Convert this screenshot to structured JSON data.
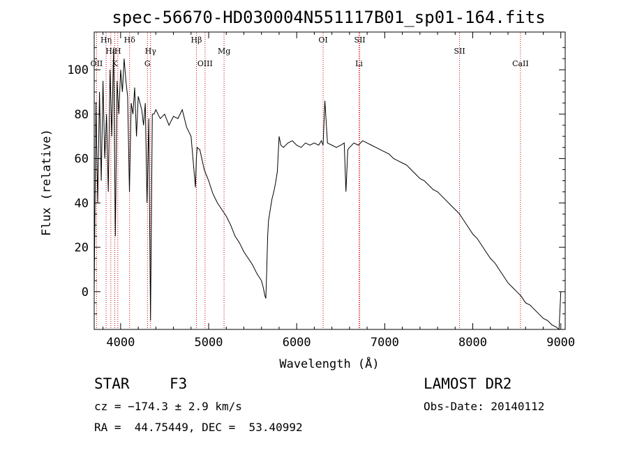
{
  "chart_data": {
    "type": "line",
    "title": "spec-56670-HD030004N551117B01_sp01-164.fits",
    "xlabel": "Wavelength (Å)",
    "ylabel": "Flux (relative)",
    "xlim": [
      3700,
      9050
    ],
    "ylim": [
      -17,
      117
    ],
    "xticks": [
      4000,
      5000,
      6000,
      7000,
      8000,
      9000
    ],
    "yticks": [
      0,
      20,
      40,
      60,
      80,
      100
    ],
    "grid": false,
    "series": [
      {
        "x": [
          3700,
          3720,
          3740,
          3760,
          3780,
          3800,
          3820,
          3840,
          3860,
          3880,
          3900,
          3920,
          3940,
          3960,
          3980,
          4000,
          4020,
          4040,
          4060,
          4080,
          4100,
          4120,
          4140,
          4160,
          4180,
          4200,
          4220,
          4240,
          4260,
          4280,
          4300,
          4320,
          4340,
          4360,
          4380,
          4400,
          4450,
          4500,
          4550,
          4600,
          4650,
          4700,
          4750,
          4800,
          4850,
          4860,
          4870,
          4900,
          4950,
          5000,
          5050,
          5100,
          5150,
          5200,
          5250,
          5300,
          5350,
          5400,
          5450,
          5500,
          5550,
          5600,
          5620,
          5640,
          5650,
          5660,
          5670,
          5680,
          5700,
          5720,
          5740,
          5760,
          5780,
          5800,
          5820,
          5850,
          5900,
          5950,
          6000,
          6050,
          6100,
          6150,
          6200,
          6250,
          6280,
          6300,
          6320,
          6350,
          6400,
          6450,
          6500,
          6540,
          6560,
          6580,
          6600,
          6650,
          6700,
          6750,
          6800,
          6850,
          6900,
          6950,
          7000,
          7050,
          7100,
          7150,
          7200,
          7250,
          7300,
          7350,
          7400,
          7450,
          7500,
          7550,
          7600,
          7650,
          7700,
          7750,
          7800,
          7850,
          7900,
          7950,
          8000,
          8050,
          8100,
          8150,
          8200,
          8250,
          8300,
          8350,
          8400,
          8450,
          8500,
          8550,
          8600,
          8650,
          8700,
          8750,
          8800,
          8850,
          8900,
          8950,
          8980,
          9000
        ],
        "y": [
          0,
          85,
          40,
          90,
          50,
          95,
          60,
          80,
          45,
          100,
          70,
          110,
          25,
          95,
          80,
          100,
          90,
          105,
          95,
          88,
          45,
          85,
          80,
          92,
          70,
          88,
          85,
          82,
          75,
          85,
          40,
          78,
          -13,
          80,
          80,
          82,
          78,
          80,
          75,
          79,
          78,
          82,
          74,
          70,
          47,
          60,
          65,
          64,
          55,
          50,
          44,
          40,
          37,
          34,
          30,
          25,
          22,
          18,
          15,
          12,
          8,
          5,
          2,
          -2,
          -3,
          10,
          25,
          32,
          37,
          42,
          45,
          49,
          54,
          70,
          66,
          65,
          67,
          68,
          66,
          65,
          67,
          66,
          67,
          66,
          68,
          66,
          86,
          67,
          66,
          65,
          66,
          67,
          45,
          64,
          65,
          67,
          66,
          68,
          67,
          66,
          65,
          64,
          63,
          62,
          60,
          59,
          58,
          57,
          55,
          53,
          51,
          50,
          48,
          46,
          45,
          43,
          41,
          39,
          37,
          35,
          32,
          29,
          26,
          24,
          21,
          18,
          15,
          13,
          10,
          7,
          4,
          2,
          0,
          -2,
          -5,
          -6,
          -8,
          -10,
          -12,
          -13,
          -15,
          -16,
          -17,
          0
        ]
      }
    ],
    "line_markers": [
      {
        "label": "Hη",
        "x": 3835,
        "row": 1
      },
      {
        "label": "Hε",
        "x": 3889,
        "row": 2
      },
      {
        "label": "OII",
        "x": 3727,
        "row": 3
      },
      {
        "label": "H",
        "x": 3968,
        "row": 2
      },
      {
        "label": "K",
        "x": 3934,
        "row": 3
      },
      {
        "label": "Hδ",
        "x": 4102,
        "row": 1
      },
      {
        "label": "Hγ",
        "x": 4340,
        "row": 2
      },
      {
        "label": "G",
        "x": 4305,
        "row": 3
      },
      {
        "label": "Hβ",
        "x": 4861,
        "row": 1
      },
      {
        "label": "OIII",
        "x": 4959,
        "row": 3
      },
      {
        "label": "Mg",
        "x": 5175,
        "row": 2
      },
      {
        "label": "OI",
        "x": 6300,
        "row": 1
      },
      {
        "label": "SII",
        "x": 6717,
        "row": 1
      },
      {
        "label": "Li",
        "x": 6708,
        "row": 3
      },
      {
        "label": "SII",
        "x": 7850,
        "row": 2
      },
      {
        "label": "CaII",
        "x": 8542,
        "row": 3
      }
    ],
    "colors": {
      "spectrum": "#000000",
      "markers": "#cc0000"
    }
  },
  "info": {
    "object_class": "STAR",
    "subclass": "F3",
    "survey": "LAMOST DR2",
    "cz": "cz = −174.3 ± 2.9 km/s",
    "obs_date": "Obs-Date: 20140112",
    "coords": "RA =  44.75449, DEC =  53.40992"
  }
}
